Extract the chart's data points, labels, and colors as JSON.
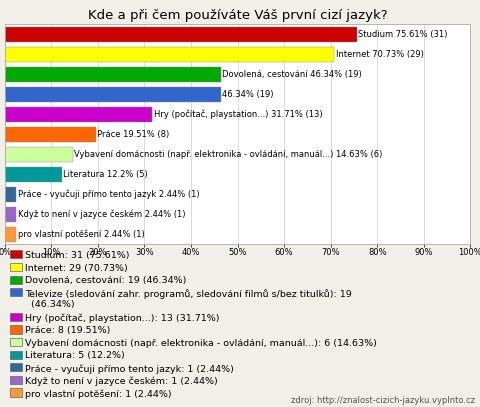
{
  "title": "Kde a při čem používáte Váš první cizí jazyk?",
  "bars": [
    {
      "label": "Studium 75.61% (31)",
      "value": 75.61,
      "color": "#cc0000"
    },
    {
      "label": "Internet 70.73% (29)",
      "value": 70.73,
      "color": "#ffff00"
    },
    {
      "label": "Dovolená, cestování 46.34% (19)",
      "value": 46.34,
      "color": "#00aa00"
    },
    {
      "label": "46.34% (19)",
      "value": 46.34,
      "color": "#3366cc"
    },
    {
      "label": "Hry (počítač, playstation...) 31.71% (13)",
      "value": 31.71,
      "color": "#cc00cc"
    },
    {
      "label": "Práce 19.51% (8)",
      "value": 19.51,
      "color": "#ff6600"
    },
    {
      "label": "Vybavení domácnosti (např. elektronika - ovládání, manuál...) 14.63% (6)",
      "value": 14.63,
      "color": "#ccff99"
    },
    {
      "label": "Literatura 12.2% (5)",
      "value": 12.2,
      "color": "#009999"
    },
    {
      "label": "Práce - vyučuji přímo tento jazyk 2.44% (1)",
      "value": 2.44,
      "color": "#336699"
    },
    {
      "label": "Když to není v jazyce českém 2.44% (1)",
      "value": 2.44,
      "color": "#9966cc"
    },
    {
      "label": "pro vlastní potěšení 2.44% (1)",
      "value": 2.44,
      "color": "#ff9933"
    }
  ],
  "legend": [
    {
      "label": "Studium: 31 (75.61%)",
      "color": "#cc0000"
    },
    {
      "label": "Internet: 29 (70.73%)",
      "color": "#ffff00"
    },
    {
      "label": "Dovolená, cestování: 19 (46.34%)",
      "color": "#00aa00"
    },
    {
      "label": "Televize (sledování zahr. programů, sledování filmů s/bez titulků): 19\n  (46.34%)",
      "color": "#3366cc"
    },
    {
      "label": "Hry (počítač, playstation...): 13 (31.71%)",
      "color": "#cc00cc"
    },
    {
      "label": "Práce: 8 (19.51%)",
      "color": "#ff6600"
    },
    {
      "label": "Vybavení domácnosti (např. elektronika - ovládání, manuál...): 6 (14.63%)",
      "color": "#ccff99"
    },
    {
      "label": "Literatura: 5 (12.2%)",
      "color": "#009999"
    },
    {
      "label": "Práce - vyučuji přímo tento jazyk: 1 (2.44%)",
      "color": "#336699"
    },
    {
      "label": "Když to není v jazyce českém: 1 (2.44%)",
      "color": "#9966cc"
    },
    {
      "label": "pro vlastní potěšení: 1 (2.44%)",
      "color": "#ff9933"
    }
  ],
  "source": "zdroj: http://znalost-cizich-jazyku.vyplnto.cz",
  "bg_color": "#f0f0e8",
  "chart_bg": "#ffffff",
  "title_fontsize": 9.5,
  "bar_fontsize": 6,
  "legend_fontsize": 6.8,
  "source_fontsize": 6
}
